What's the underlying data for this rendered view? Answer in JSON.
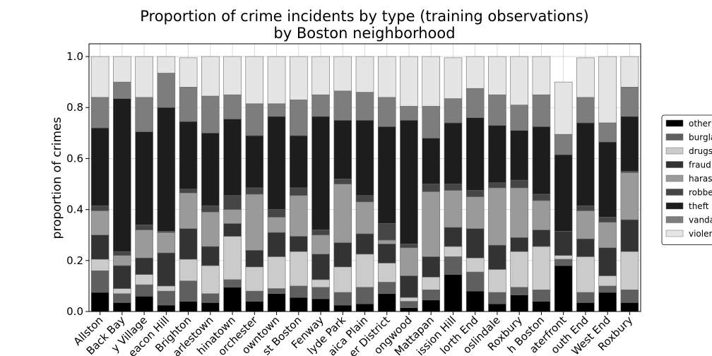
{
  "chart_data": {
    "type": "bar",
    "stacked": true,
    "title": "Proportion of crime incidents by type (training observations)",
    "subtitle": "by Boston neighborhood",
    "xlabel": "",
    "ylabel": "proportion of crimes",
    "ylim": [
      0,
      1.05
    ],
    "yticks": [
      0.0,
      0.2,
      0.4,
      0.6,
      0.8,
      1.0
    ],
    "ytick_labels": [
      "0.0",
      "0.2",
      "0.4",
      "0.6",
      "0.8",
      "1.0"
    ],
    "grid": true,
    "legend_position": "right",
    "categories": [
      "Allston",
      "Back Bay",
      "y Village",
      "eacon Hill",
      "Brighton",
      "arlestown",
      "hinatown",
      "orchester",
      "owntown",
      "st Boston",
      "Fenway",
      "lyde Park",
      "aica Plain",
      "er District",
      "ongwood",
      "Mattapan",
      "ission Hill",
      "lorth End",
      "oslindale",
      "Roxbury",
      "h Boston",
      "aterfront",
      "outh End",
      "West End",
      "Roxbury"
    ],
    "series": [
      {
        "name": "other",
        "color": "#000000",
        "values": [
          0.075,
          0.035,
          0.06,
          0.025,
          0.04,
          0.035,
          0.095,
          0.04,
          0.07,
          0.055,
          0.05,
          0.025,
          0.03,
          0.07,
          0.015,
          0.045,
          0.145,
          0.08,
          0.03,
          0.065,
          0.04,
          0.18,
          0.035,
          0.075,
          0.035
        ]
      },
      {
        "name": "burgla",
        "color": "#5f5f5f",
        "values": [
          0.085,
          0.035,
          0.045,
          0.055,
          0.08,
          0.035,
          0.03,
          0.04,
          0.02,
          0.045,
          0.045,
          0.05,
          0.065,
          0.045,
          0.025,
          0.04,
          0.07,
          0.075,
          0.045,
          0.03,
          0.045,
          0.025,
          0.04,
          0.025,
          0.05
        ]
      },
      {
        "name": "drugs",
        "color": "#cbcbcb",
        "values": [
          0.045,
          0.02,
          0.04,
          0.02,
          0.085,
          0.11,
          0.17,
          0.095,
          0.125,
          0.135,
          0.03,
          0.1,
          0.13,
          0.075,
          0.015,
          0.05,
          0.04,
          0.055,
          0.09,
          0.14,
          0.17,
          0.015,
          0.14,
          0.04,
          0.15
        ]
      },
      {
        "name": "fraud",
        "color": "#333333",
        "values": [
          0.095,
          0.09,
          0.065,
          0.13,
          0.12,
          0.075,
          0.05,
          0.065,
          0.095,
          0.06,
          0.1,
          0.095,
          0.08,
          0.075,
          0.085,
          0.08,
          0.075,
          0.115,
          0.095,
          0.055,
          0.065,
          0.095,
          0.07,
          0.11,
          0.125
        ]
      },
      {
        "name": "haras",
        "color": "#9a9a9a",
        "values": [
          0.095,
          0.04,
          0.11,
          0.08,
          0.14,
          0.135,
          0.055,
          0.22,
          0.06,
          0.16,
          0.075,
          0.23,
          0.125,
          0.015,
          0.11,
          0.255,
          0.145,
          0.125,
          0.225,
          0.195,
          0.115,
          0.0,
          0.11,
          0.1,
          0.185
        ]
      },
      {
        "name": "robbe",
        "color": "#464646",
        "values": [
          0.02,
          0.015,
          0.02,
          0.005,
          0.015,
          0.025,
          0.055,
          0.025,
          0.03,
          0.03,
          0.02,
          0.02,
          0.025,
          0.065,
          0.015,
          0.03,
          0.025,
          0.025,
          0.02,
          0.03,
          0.025,
          0.0,
          0.02,
          0.02,
          0.005
        ]
      },
      {
        "name": "theft",
        "color": "#1d1d1d",
        "values": [
          0.305,
          0.6,
          0.365,
          0.485,
          0.265,
          0.285,
          0.3,
          0.205,
          0.365,
          0.205,
          0.445,
          0.23,
          0.295,
          0.38,
          0.485,
          0.18,
          0.24,
          0.285,
          0.225,
          0.195,
          0.265,
          0.3,
          0.325,
          0.295,
          0.215
        ]
      },
      {
        "name": "vanda",
        "color": "#7d7d7d",
        "values": [
          0.12,
          0.065,
          0.135,
          0.135,
          0.135,
          0.145,
          0.095,
          0.125,
          0.05,
          0.14,
          0.085,
          0.115,
          0.11,
          0.115,
          0.055,
          0.125,
          0.095,
          0.115,
          0.12,
          0.1,
          0.125,
          0.08,
          0.1,
          0.075,
          0.115
        ]
      },
      {
        "name": "violer",
        "color": "#e5e5e5",
        "values": [
          0.16,
          0.1,
          0.16,
          0.065,
          0.115,
          0.155,
          0.15,
          0.185,
          0.185,
          0.17,
          0.15,
          0.135,
          0.14,
          0.16,
          0.195,
          0.195,
          0.16,
          0.125,
          0.15,
          0.19,
          0.15,
          0.205,
          0.155,
          0.26,
          0.12
        ]
      }
    ]
  }
}
